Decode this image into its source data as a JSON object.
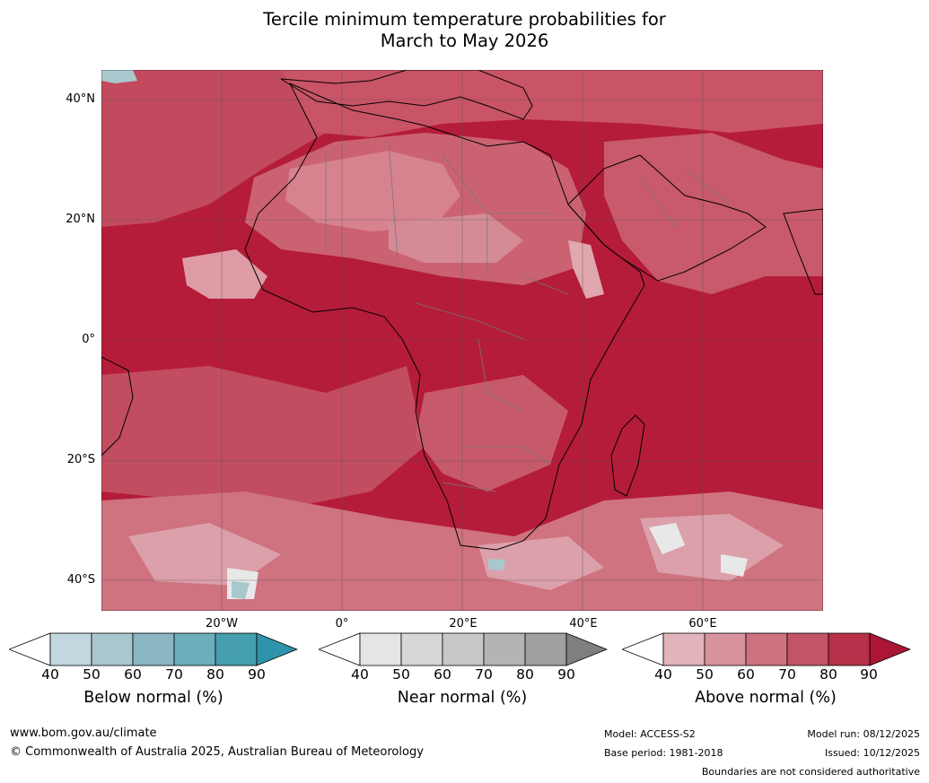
{
  "title": {
    "line1": "Tercile minimum temperature probabilities for",
    "line2": "March to May 2026"
  },
  "map": {
    "region": "Africa",
    "lat_labels": [
      "40°N",
      "20°N",
      "0°",
      "20°S",
      "40°S"
    ],
    "lon_labels": [
      "20°W",
      "0°",
      "20°E",
      "40°E",
      "60°E"
    ],
    "dominant_category": "Above normal",
    "notes_colors": {
      "ocean_dominant": "#b51c39",
      "land_mid": "#c74e61",
      "land_light": "#d9939d"
    }
  },
  "colorbars": [
    {
      "label": "Below normal (%)",
      "ticks": [
        "40",
        "50",
        "60",
        "70",
        "80",
        "90"
      ],
      "colors": [
        "#ffffff",
        "#c2d7de",
        "#a8c8ce",
        "#8ab7c2",
        "#6caebb",
        "#459faf",
        "#2f94ab"
      ]
    },
    {
      "label": "Near normal (%)",
      "ticks": [
        "40",
        "50",
        "60",
        "70",
        "80",
        "90"
      ],
      "colors": [
        "#ffffff",
        "#e5e5e5",
        "#d7d7d7",
        "#c8c8c8",
        "#b4b4b4",
        "#a0a0a0",
        "#7f7f7f"
      ]
    },
    {
      "label": "Above normal (%)",
      "ticks": [
        "40",
        "50",
        "60",
        "70",
        "80",
        "90"
      ],
      "colors": [
        "#ffffff",
        "#e0b4ba",
        "#d8929d",
        "#cc7280",
        "#c35468",
        "#b83049",
        "#ab1636"
      ]
    }
  ],
  "footer": {
    "website": "www.bom.gov.au/climate",
    "copyright": "© Commonwealth of Australia 2025, Australian Bureau of Meteorology",
    "model": "Model: ACCESS-S2",
    "base_period": "Base period: 1981-2018",
    "model_run": "Model run: 08/12/2025",
    "issued": "Issued: 10/12/2025",
    "disclaimer": "Boundaries are not considered authoritative"
  }
}
